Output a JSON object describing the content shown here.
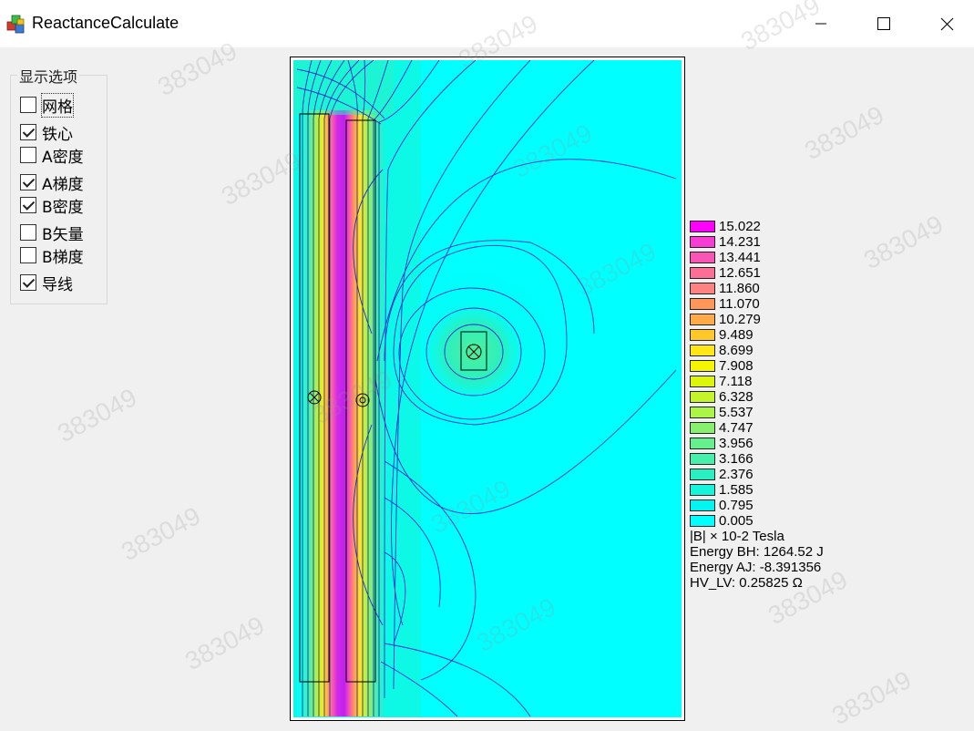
{
  "window": {
    "title": "ReactanceCalculate",
    "controls": {
      "minimize_icon": "minimize-icon",
      "maximize_icon": "maximize-icon",
      "close_icon": "close-icon"
    }
  },
  "display_options": {
    "legend": "显示选项",
    "items": [
      {
        "label": "网格",
        "checked": false
      },
      {
        "label": "铁心",
        "checked": true
      },
      {
        "label": "A密度",
        "checked": false
      },
      {
        "label": "A梯度",
        "checked": true
      },
      {
        "label": "B密度",
        "checked": true
      },
      {
        "label": "B矢量",
        "checked": false
      },
      {
        "label": "B梯度",
        "checked": false
      },
      {
        "label": "导线",
        "checked": true
      }
    ]
  },
  "legend": {
    "levels": [
      {
        "value": "15.022",
        "color": "#ff00ff"
      },
      {
        "value": "14.231",
        "color": "#f63cd2"
      },
      {
        "value": "13.441",
        "color": "#f955b4"
      },
      {
        "value": "12.651",
        "color": "#fb6e96"
      },
      {
        "value": "11.860",
        "color": "#ff8282"
      },
      {
        "value": "11.070",
        "color": "#ff965a"
      },
      {
        "value": "10.279",
        "color": "#ffaa46"
      },
      {
        "value": "9.489",
        "color": "#ffc828"
      },
      {
        "value": "8.699",
        "color": "#ffe614"
      },
      {
        "value": "7.908",
        "color": "#f5f500"
      },
      {
        "value": "7.118",
        "color": "#dcf50a"
      },
      {
        "value": "6.328",
        "color": "#c3f528"
      },
      {
        "value": "5.537",
        "color": "#aaf546"
      },
      {
        "value": "4.747",
        "color": "#87f06e"
      },
      {
        "value": "3.956",
        "color": "#64f08c"
      },
      {
        "value": "3.166",
        "color": "#46f0aa"
      },
      {
        "value": "2.376",
        "color": "#28f0c3"
      },
      {
        "value": "1.585",
        "color": "#14f5dc"
      },
      {
        "value": "0.795",
        "color": "#00f5f0"
      },
      {
        "value": "0.005",
        "color": "#00ffff"
      }
    ],
    "unit": "|B| × 10-2 Tesla",
    "energy_bh": "Energy BH: 1264.52 J",
    "energy_aj": "Energy AJ: -8.391356",
    "hv_lv": "HV_LV: 0.25825 Ω"
  },
  "watermark_text": "383049"
}
